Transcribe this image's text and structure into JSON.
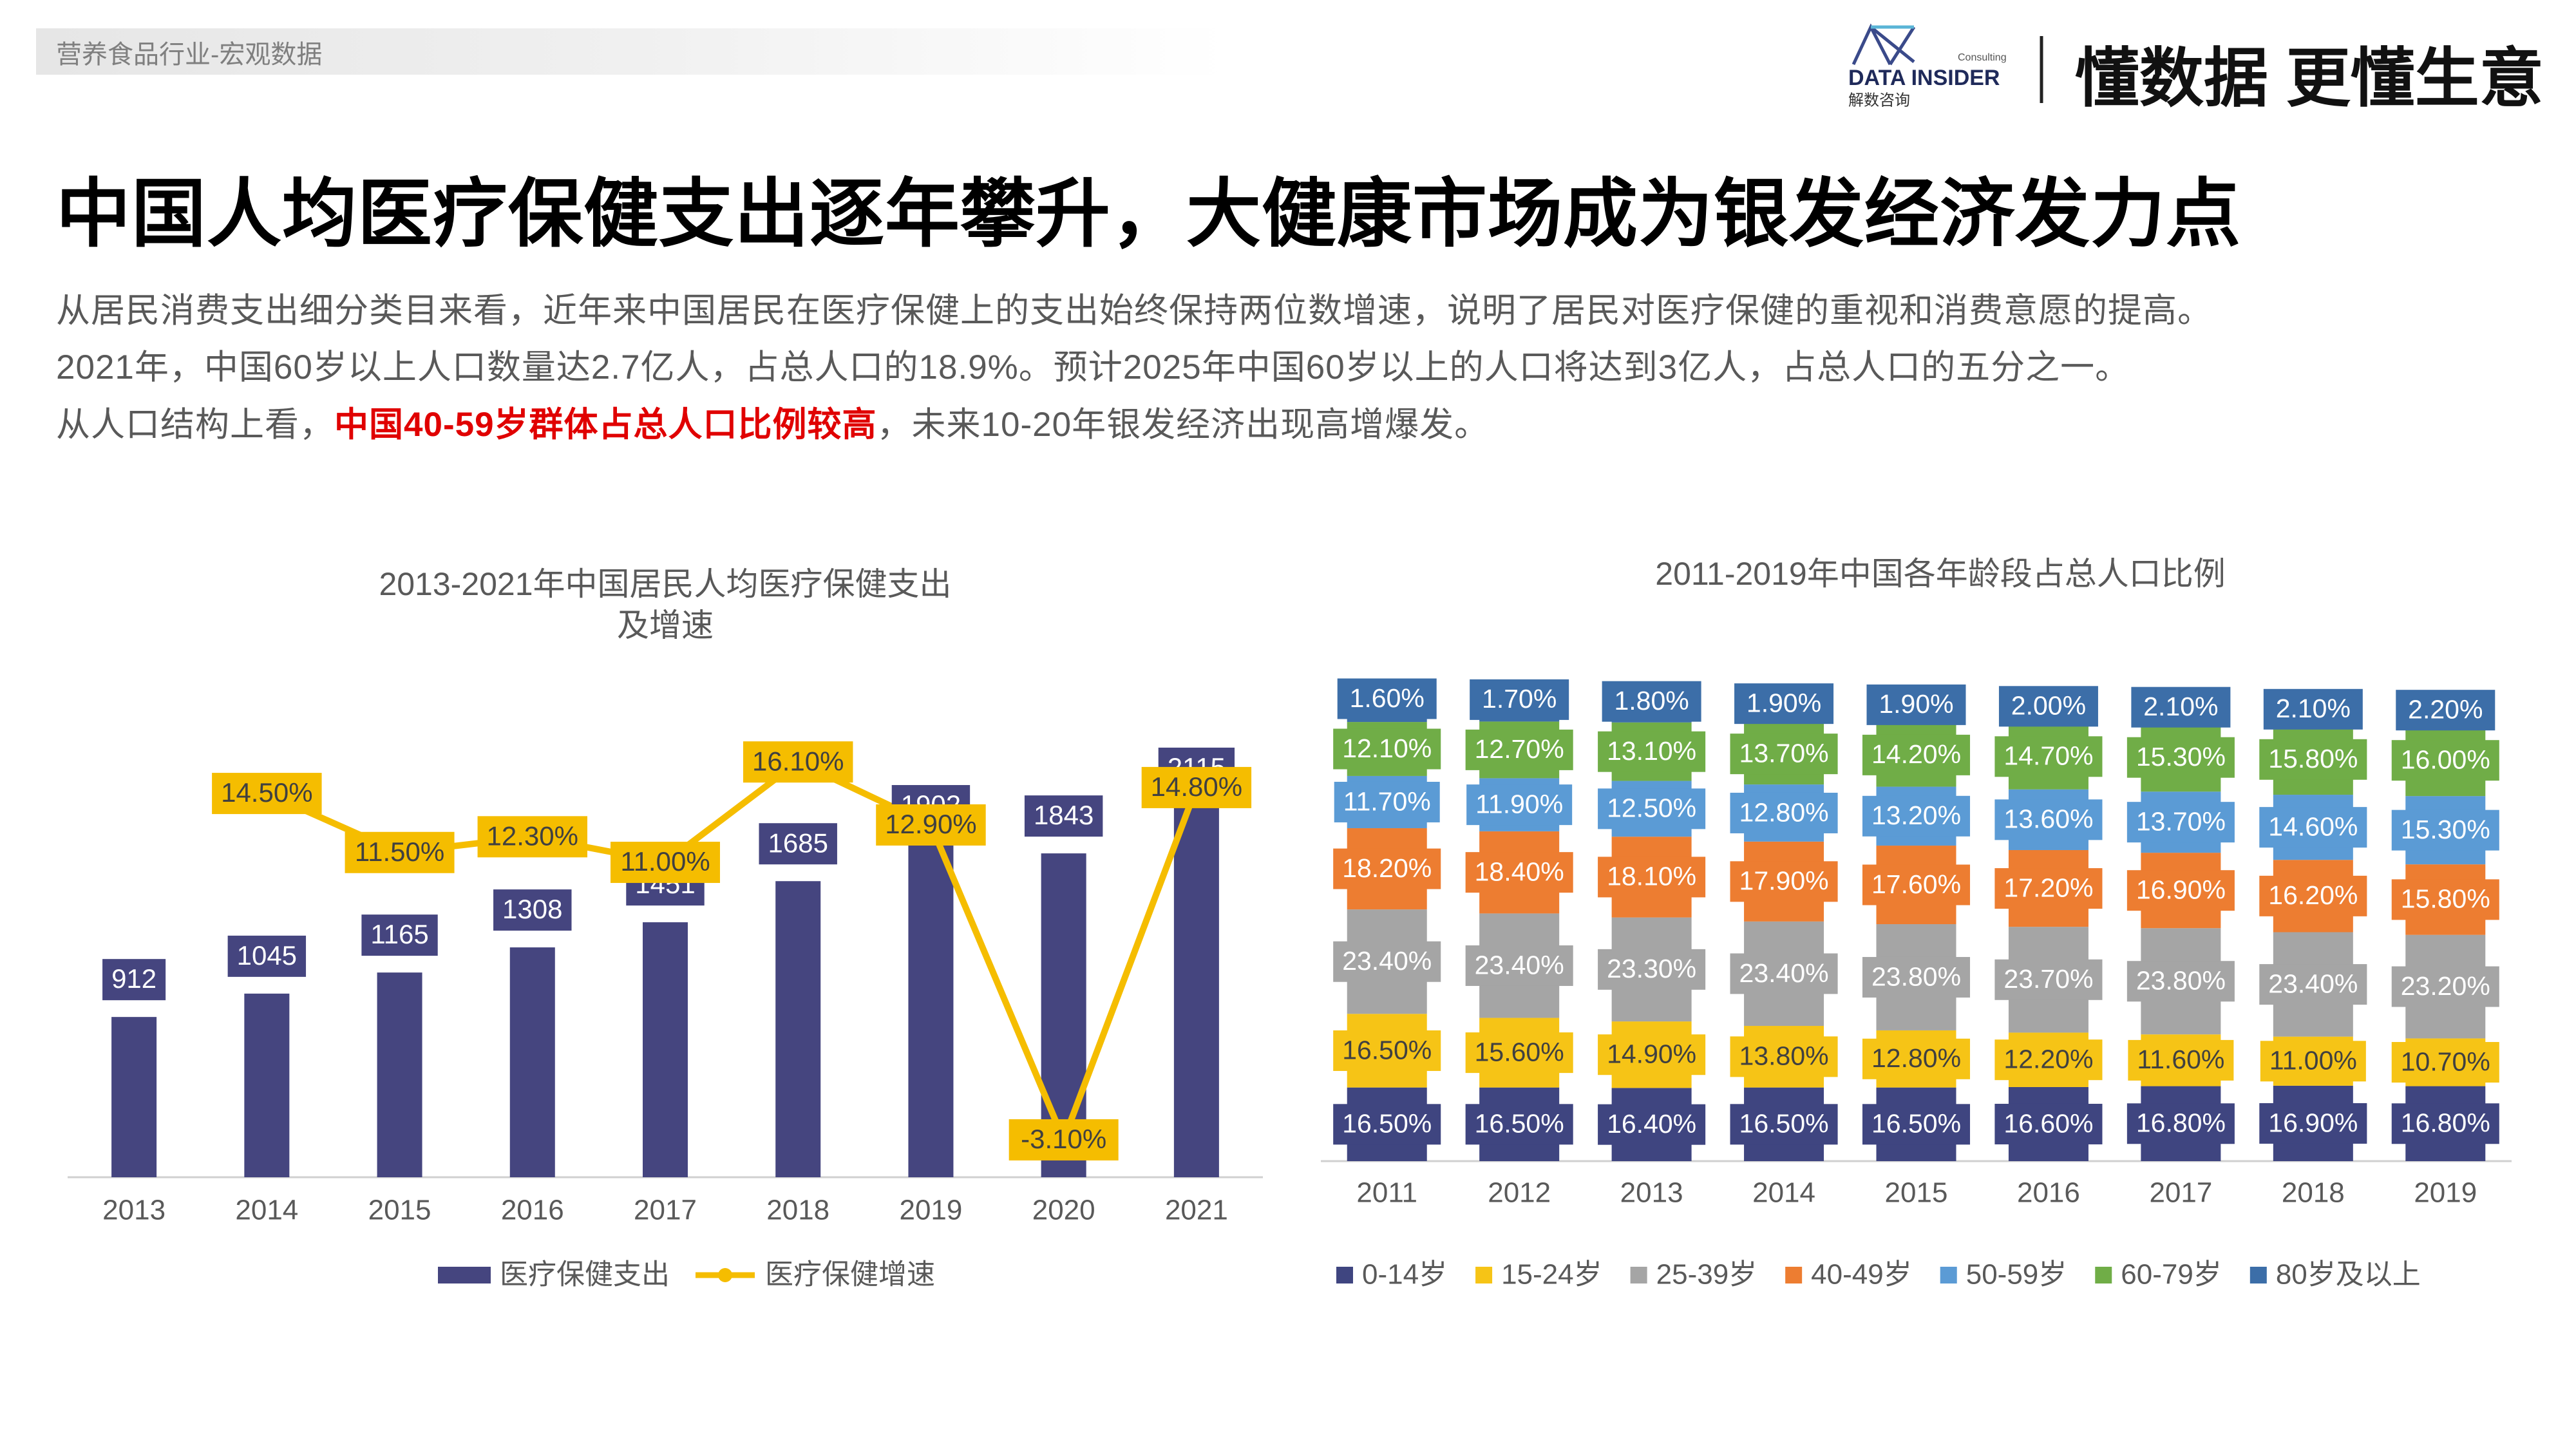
{
  "header": {
    "breadcrumb": "营养食品行业-宏观数据",
    "logo_name": "DATA INSIDER",
    "logo_sub": "Consulting",
    "logo_cn": "解数咨询",
    "slogan": "懂数据 更懂生意"
  },
  "title": "中国人均医疗保健支出逐年攀升，大健康市场成为银发经济发力点",
  "paragraphs": [
    [
      "从居民消费支出细分类目来看，近年来中国居民在医疗保健上的支出始终保持两位数增速，说明了居民对医疗保健的重视和消费意愿的提高。"
    ],
    [
      "2021年，中国60岁以上人口数量达2.7亿人，占总人口的18.9%。预计2025年中国60岁以上的人口将达到3亿人，占总人口的五分之一。"
    ],
    [
      "从人口结构上看，",
      "中国40-59岁群体占总人口比例较高",
      "，未来10-20年银发经济出现高增爆发。"
    ]
  ],
  "chart_data": [
    {
      "type": "combo",
      "title": "2013-2021年中国居民人均医疗保健支出及增速",
      "categories": [
        "2013",
        "2014",
        "2015",
        "2016",
        "2017",
        "2018",
        "2019",
        "2020",
        "2021"
      ],
      "ylim": [
        0,
        2800
      ],
      "y2lim": [
        -5,
        20
      ],
      "series": [
        {
          "name": "医疗保健支出",
          "color": "#45457f",
          "values": [
            912,
            1045,
            1165,
            1308,
            1451,
            1685,
            1902,
            1843,
            2115
          ]
        },
        {
          "name": "医疗保健增速",
          "color": "#f5bd00",
          "axis": "y2",
          "values": [
            null,
            14.5,
            11.5,
            12.3,
            11.0,
            16.1,
            12.9,
            -3.1,
            14.8
          ],
          "value_labels": [
            null,
            "14.50%",
            "11.50%",
            "12.30%",
            "11.00%",
            "16.10%",
            "12.90%",
            "-3.10%",
            "14.80%"
          ]
        }
      ]
    },
    {
      "type": "stacked",
      "title": "2011-2019年中国各年龄段占总人口比例",
      "categories": [
        "2011",
        "2012",
        "2013",
        "2014",
        "2015",
        "2016",
        "2017",
        "2018",
        "2019"
      ],
      "ylim": [
        0,
        100
      ],
      "series": [
        {
          "name": "0-14岁",
          "color": "#3f4580",
          "values": [
            16.5,
            16.5,
            16.4,
            16.5,
            16.5,
            16.6,
            16.8,
            16.9,
            16.8
          ],
          "value_labels": [
            "16.50%",
            "16.50%",
            "16.40%",
            "16.50%",
            "16.50%",
            "16.60%",
            "16.80%",
            "16.90%",
            "16.80%"
          ]
        },
        {
          "name": "15-24岁",
          "color": "#f6c416",
          "values": [
            16.5,
            15.6,
            14.9,
            13.8,
            12.8,
            12.2,
            11.6,
            11.0,
            10.7
          ],
          "value_labels": [
            "16.50%",
            "15.60%",
            "14.90%",
            "13.80%",
            "12.80%",
            "12.20%",
            "11.60%",
            "11.00%",
            "10.70%"
          ]
        },
        {
          "name": "25-39岁",
          "color": "#a5a5a5",
          "values": [
            23.4,
            23.4,
            23.3,
            23.4,
            23.8,
            23.7,
            23.8,
            23.4,
            23.2
          ],
          "value_labels": [
            "23.40%",
            "23.40%",
            "23.30%",
            "23.40%",
            "23.80%",
            "23.70%",
            "23.80%",
            "23.40%",
            "23.20%"
          ]
        },
        {
          "name": "40-49岁",
          "color": "#ed7d31",
          "values": [
            18.2,
            18.4,
            18.1,
            17.9,
            17.6,
            17.2,
            16.9,
            16.2,
            15.8
          ],
          "value_labels": [
            "18.20%",
            "18.40%",
            "18.10%",
            "17.90%",
            "17.60%",
            "17.20%",
            "16.90%",
            "16.20%",
            "15.80%"
          ]
        },
        {
          "name": "50-59岁",
          "color": "#5b9bd5",
          "values": [
            11.7,
            11.9,
            12.5,
            12.8,
            13.2,
            13.6,
            13.7,
            14.6,
            15.3
          ],
          "value_labels": [
            "11.70%",
            "11.90%",
            "12.50%",
            "12.80%",
            "13.20%",
            "13.60%",
            "13.70%",
            "14.60%",
            "15.30%"
          ]
        },
        {
          "name": "60-79岁",
          "color": "#70ad47",
          "values": [
            12.1,
            12.7,
            13.1,
            13.7,
            14.2,
            14.7,
            15.3,
            15.8,
            16.0
          ],
          "value_labels": [
            "12.10%",
            "12.70%",
            "13.10%",
            "13.70%",
            "14.20%",
            "14.70%",
            "15.30%",
            "15.80%",
            "16.00%"
          ]
        },
        {
          "name": "80岁及以上",
          "color": "#3c6ea8",
          "values": [
            1.6,
            1.7,
            1.8,
            1.9,
            1.9,
            2.0,
            2.1,
            2.1,
            2.2
          ],
          "value_labels": [
            "1.60%",
            "1.70%",
            "1.80%",
            "1.90%",
            "1.90%",
            "2.00%",
            "2.10%",
            "2.10%",
            "2.20%"
          ]
        }
      ]
    }
  ]
}
